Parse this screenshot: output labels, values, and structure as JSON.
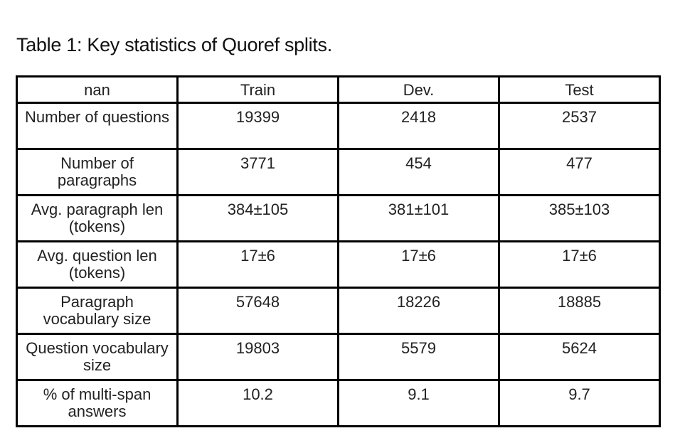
{
  "caption": "Table 1: Key statistics of Quoref splits.",
  "table": {
    "headers": [
      "nan",
      "Train",
      "Dev.",
      "Test"
    ],
    "rows": [
      {
        "label": "Number of questions",
        "train": "19399",
        "dev": "2418",
        "test": "2537"
      },
      {
        "label": "Number of paragraphs",
        "train": "3771",
        "dev": "454",
        "test": "477"
      },
      {
        "label": "Avg. paragraph len (tokens)",
        "train": "384±105",
        "dev": "381±101",
        "test": "385±103"
      },
      {
        "label": "Avg. question len (tokens)",
        "train": "17±6",
        "dev": "17±6",
        "test": "17±6"
      },
      {
        "label": "Paragraph vocabulary size",
        "train": "57648",
        "dev": "18226",
        "test": "18885"
      },
      {
        "label": "Question vocabulary size",
        "train": "19803",
        "dev": "5579",
        "test": "5624"
      },
      {
        "label": "% of multi-span answers",
        "train": "10.2",
        "dev": "9.1",
        "test": "9.7"
      }
    ]
  }
}
